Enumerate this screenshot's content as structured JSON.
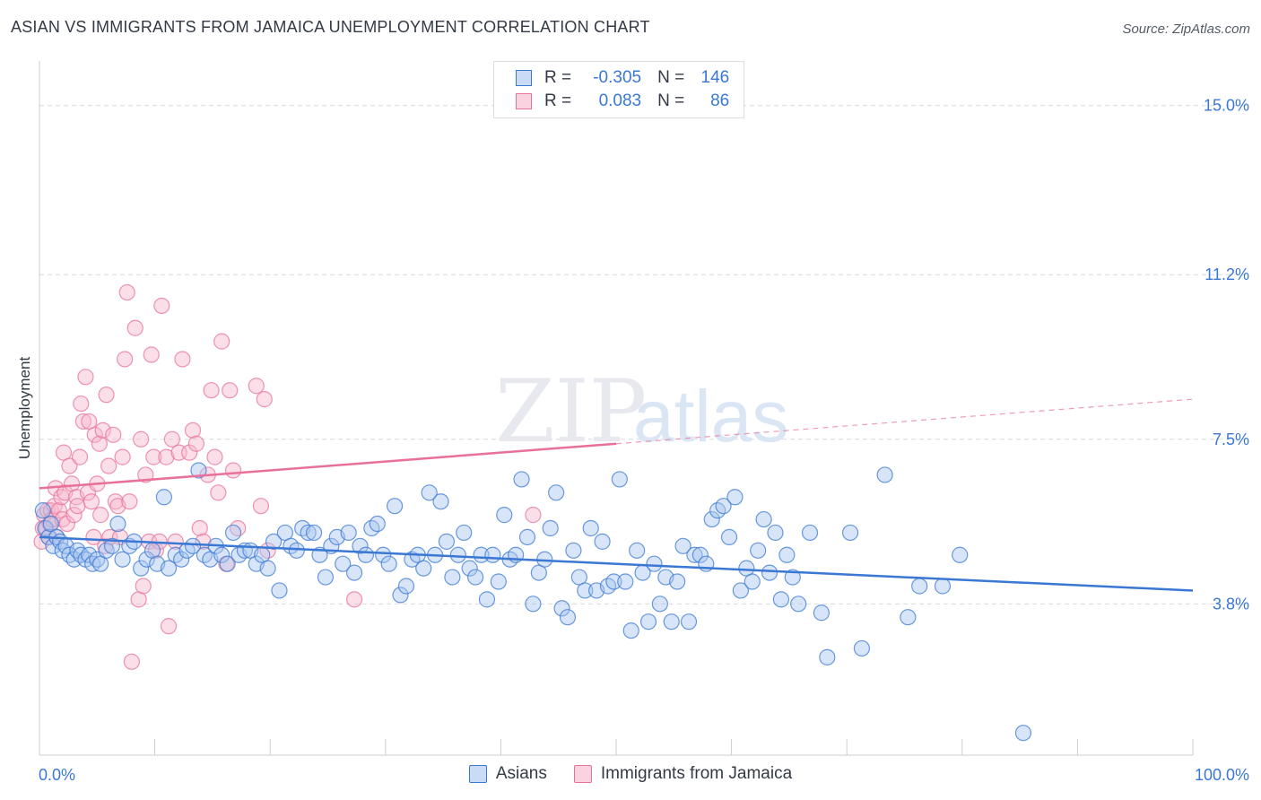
{
  "title": "ASIAN VS IMMIGRANTS FROM JAMAICA UNEMPLOYMENT CORRELATION CHART",
  "source": "Source: ZipAtlas.com",
  "watermark": {
    "zip": "ZIP",
    "atlas": "atlas"
  },
  "legend_top": {
    "rows": [
      {
        "r_label": "R =",
        "r_value": "-0.305",
        "n_label": "N =",
        "n_value": "146"
      },
      {
        "r_label": "R =",
        "r_value": "0.083",
        "n_label": "N =",
        "n_value": "86"
      }
    ]
  },
  "legend_bottom": {
    "series_a": "Asians",
    "series_b": "Immigrants from Jamaica"
  },
  "colors": {
    "asians": "#3a78d4",
    "asians_fill": "#a8c6ef",
    "jamaica": "#e8709a",
    "jamaica_fill": "#f6b8cc",
    "tick_text": "#3a78d4",
    "grid": "#d6d9de"
  },
  "chart_data": {
    "type": "scatter",
    "title": "ASIAN VS IMMIGRANTS FROM JAMAICA UNEMPLOYMENT CORRELATION CHART",
    "xlabel": "",
    "ylabel": "Unemployment",
    "xlim": [
      0,
      100
    ],
    "ylim": [
      0.4,
      15.8
    ],
    "x_tick_labels": [
      "0.0%",
      "100.0%"
    ],
    "y_ticks": [
      3.8,
      7.5,
      11.2,
      15.0
    ],
    "y_tick_labels": [
      "3.8%",
      "7.5%",
      "11.2%",
      "15.0%"
    ],
    "grid": true,
    "legend_position": "top-center",
    "series": [
      {
        "name": "Asians",
        "r": -0.305,
        "n": 146,
        "trend": {
          "x": [
            0,
            100
          ],
          "y": [
            5.3,
            4.1
          ]
        },
        "points": [
          [
            0.3,
            5.9
          ],
          [
            0.5,
            5.5
          ],
          [
            0.8,
            5.3
          ],
          [
            1.0,
            5.6
          ],
          [
            1.2,
            5.1
          ],
          [
            1.5,
            5.3
          ],
          [
            1.8,
            5.2
          ],
          [
            2.0,
            5.0
          ],
          [
            2.3,
            5.1
          ],
          [
            2.6,
            4.9
          ],
          [
            3.0,
            4.8
          ],
          [
            3.3,
            5.0
          ],
          [
            3.6,
            4.9
          ],
          [
            4.0,
            4.8
          ],
          [
            4.3,
            4.9
          ],
          [
            4.6,
            4.7
          ],
          [
            5.0,
            4.8
          ],
          [
            5.3,
            4.7
          ],
          [
            5.8,
            5.0
          ],
          [
            6.3,
            5.1
          ],
          [
            6.8,
            5.6
          ],
          [
            7.2,
            4.8
          ],
          [
            7.8,
            5.1
          ],
          [
            8.2,
            5.2
          ],
          [
            8.8,
            4.6
          ],
          [
            9.3,
            4.8
          ],
          [
            9.8,
            5.0
          ],
          [
            10.2,
            4.7
          ],
          [
            10.8,
            6.2
          ],
          [
            11.2,
            4.6
          ],
          [
            11.8,
            4.9
          ],
          [
            12.3,
            4.8
          ],
          [
            12.8,
            5.0
          ],
          [
            13.3,
            5.1
          ],
          [
            13.8,
            6.8
          ],
          [
            14.3,
            4.9
          ],
          [
            14.8,
            4.8
          ],
          [
            15.3,
            5.1
          ],
          [
            15.8,
            4.9
          ],
          [
            16.3,
            4.7
          ],
          [
            16.8,
            5.4
          ],
          [
            17.3,
            4.9
          ],
          [
            17.8,
            5.0
          ],
          [
            18.3,
            5.0
          ],
          [
            18.8,
            4.7
          ],
          [
            19.3,
            4.9
          ],
          [
            19.8,
            4.6
          ],
          [
            20.3,
            5.2
          ],
          [
            20.8,
            4.1
          ],
          [
            21.3,
            5.4
          ],
          [
            21.8,
            5.1
          ],
          [
            22.3,
            5.0
          ],
          [
            22.8,
            5.5
          ],
          [
            23.3,
            5.4
          ],
          [
            23.8,
            5.4
          ],
          [
            24.3,
            4.9
          ],
          [
            24.8,
            4.4
          ],
          [
            25.3,
            5.1
          ],
          [
            25.8,
            5.3
          ],
          [
            26.3,
            4.7
          ],
          [
            26.8,
            5.4
          ],
          [
            27.3,
            4.5
          ],
          [
            27.8,
            5.1
          ],
          [
            28.3,
            4.9
          ],
          [
            28.8,
            5.5
          ],
          [
            29.3,
            5.6
          ],
          [
            29.8,
            4.9
          ],
          [
            30.3,
            4.7
          ],
          [
            30.8,
            6.0
          ],
          [
            31.3,
            4.0
          ],
          [
            31.8,
            4.2
          ],
          [
            32.3,
            4.8
          ],
          [
            32.8,
            4.9
          ],
          [
            33.3,
            4.6
          ],
          [
            33.8,
            6.3
          ],
          [
            34.3,
            4.9
          ],
          [
            34.8,
            6.1
          ],
          [
            35.3,
            5.2
          ],
          [
            35.8,
            4.4
          ],
          [
            36.3,
            4.9
          ],
          [
            36.8,
            5.4
          ],
          [
            37.3,
            4.6
          ],
          [
            37.8,
            4.4
          ],
          [
            38.3,
            4.9
          ],
          [
            38.8,
            3.9
          ],
          [
            39.3,
            4.9
          ],
          [
            39.8,
            4.3
          ],
          [
            40.3,
            5.8
          ],
          [
            40.8,
            4.8
          ],
          [
            41.3,
            4.9
          ],
          [
            41.8,
            6.6
          ],
          [
            42.3,
            5.3
          ],
          [
            42.8,
            3.8
          ],
          [
            43.3,
            4.5
          ],
          [
            43.8,
            4.8
          ],
          [
            44.3,
            5.5
          ],
          [
            44.8,
            6.3
          ],
          [
            45.3,
            3.7
          ],
          [
            45.8,
            3.5
          ],
          [
            46.3,
            5.0
          ],
          [
            46.8,
            4.4
          ],
          [
            47.3,
            4.1
          ],
          [
            47.8,
            5.5
          ],
          [
            48.3,
            4.1
          ],
          [
            48.8,
            5.2
          ],
          [
            49.3,
            4.2
          ],
          [
            49.8,
            4.3
          ],
          [
            50.3,
            6.6
          ],
          [
            50.8,
            4.3
          ],
          [
            51.3,
            3.2
          ],
          [
            51.8,
            5.0
          ],
          [
            52.3,
            4.5
          ],
          [
            52.8,
            3.4
          ],
          [
            53.3,
            4.7
          ],
          [
            53.8,
            3.8
          ],
          [
            54.3,
            4.4
          ],
          [
            54.8,
            3.4
          ],
          [
            55.3,
            4.3
          ],
          [
            55.8,
            5.1
          ],
          [
            56.3,
            3.4
          ],
          [
            56.8,
            4.9
          ],
          [
            57.3,
            4.9
          ],
          [
            57.8,
            4.7
          ],
          [
            58.3,
            5.7
          ],
          [
            58.8,
            5.9
          ],
          [
            59.3,
            6.0
          ],
          [
            59.8,
            5.3
          ],
          [
            60.3,
            6.2
          ],
          [
            60.8,
            4.1
          ],
          [
            61.3,
            4.6
          ],
          [
            61.8,
            4.3
          ],
          [
            62.3,
            5.0
          ],
          [
            62.8,
            5.7
          ],
          [
            63.3,
            4.5
          ],
          [
            63.8,
            5.4
          ],
          [
            64.3,
            3.9
          ],
          [
            64.8,
            4.9
          ],
          [
            65.3,
            4.4
          ],
          [
            65.8,
            3.8
          ],
          [
            66.8,
            5.4
          ],
          [
            67.8,
            3.6
          ],
          [
            68.3,
            2.6
          ],
          [
            70.3,
            5.4
          ],
          [
            71.3,
            2.8
          ],
          [
            73.3,
            6.7
          ],
          [
            75.3,
            3.5
          ],
          [
            76.3,
            4.2
          ],
          [
            78.3,
            4.2
          ],
          [
            79.8,
            4.9
          ],
          [
            85.3,
            0.9
          ]
        ]
      },
      {
        "name": "Immigrants from Jamaica",
        "r": 0.083,
        "n": 86,
        "trend": {
          "x": [
            0,
            50,
            100
          ],
          "y": [
            6.4,
            7.4,
            8.4
          ],
          "solid_until_x": 50
        },
        "points": [
          [
            0.2,
            5.2
          ],
          [
            0.3,
            5.5
          ],
          [
            0.4,
            5.8
          ],
          [
            0.6,
            5.5
          ],
          [
            0.7,
            5.9
          ],
          [
            0.8,
            5.3
          ],
          [
            0.9,
            5.6
          ],
          [
            1.0,
            5.9
          ],
          [
            1.1,
            5.7
          ],
          [
            1.3,
            6.0
          ],
          [
            1.4,
            6.4
          ],
          [
            1.5,
            5.3
          ],
          [
            1.7,
            5.9
          ],
          [
            1.9,
            6.2
          ],
          [
            2.0,
            5.7
          ],
          [
            2.1,
            7.2
          ],
          [
            2.2,
            6.3
          ],
          [
            2.4,
            5.6
          ],
          [
            2.6,
            6.9
          ],
          [
            2.8,
            6.5
          ],
          [
            3.0,
            5.8
          ],
          [
            3.2,
            6.2
          ],
          [
            3.3,
            6.0
          ],
          [
            3.5,
            7.1
          ],
          [
            3.6,
            8.3
          ],
          [
            3.8,
            7.9
          ],
          [
            4.0,
            8.9
          ],
          [
            4.2,
            6.3
          ],
          [
            4.3,
            7.9
          ],
          [
            4.5,
            6.1
          ],
          [
            4.7,
            5.3
          ],
          [
            4.8,
            7.6
          ],
          [
            5.0,
            6.5
          ],
          [
            5.2,
            7.4
          ],
          [
            5.3,
            5.8
          ],
          [
            5.5,
            7.7
          ],
          [
            5.7,
            5.1
          ],
          [
            5.8,
            8.5
          ],
          [
            6.0,
            6.9
          ],
          [
            6.1,
            5.3
          ],
          [
            6.4,
            7.6
          ],
          [
            6.6,
            6.1
          ],
          [
            6.8,
            6.0
          ],
          [
            7.0,
            5.3
          ],
          [
            7.2,
            7.1
          ],
          [
            7.4,
            9.3
          ],
          [
            7.6,
            10.8
          ],
          [
            7.8,
            6.1
          ],
          [
            8.0,
            2.5
          ],
          [
            8.3,
            10.0
          ],
          [
            8.6,
            3.9
          ],
          [
            8.8,
            7.5
          ],
          [
            9.0,
            4.2
          ],
          [
            9.2,
            6.7
          ],
          [
            9.5,
            5.2
          ],
          [
            9.7,
            9.4
          ],
          [
            9.9,
            7.1
          ],
          [
            10.1,
            5.0
          ],
          [
            10.4,
            5.2
          ],
          [
            10.6,
            10.5
          ],
          [
            11.0,
            7.1
          ],
          [
            11.2,
            3.3
          ],
          [
            11.5,
            7.5
          ],
          [
            11.8,
            5.2
          ],
          [
            12.1,
            7.2
          ],
          [
            12.4,
            9.3
          ],
          [
            13.0,
            7.2
          ],
          [
            13.3,
            7.7
          ],
          [
            13.6,
            7.4
          ],
          [
            13.9,
            5.5
          ],
          [
            14.2,
            5.2
          ],
          [
            14.6,
            6.7
          ],
          [
            14.9,
            8.6
          ],
          [
            15.2,
            7.1
          ],
          [
            15.5,
            6.3
          ],
          [
            15.8,
            9.7
          ],
          [
            16.2,
            4.7
          ],
          [
            16.5,
            8.6
          ],
          [
            16.8,
            6.8
          ],
          [
            17.2,
            5.5
          ],
          [
            18.8,
            8.7
          ],
          [
            19.2,
            6.0
          ],
          [
            19.5,
            8.4
          ],
          [
            19.8,
            5.0
          ],
          [
            27.3,
            3.9
          ],
          [
            42.8,
            5.8
          ]
        ]
      }
    ]
  }
}
